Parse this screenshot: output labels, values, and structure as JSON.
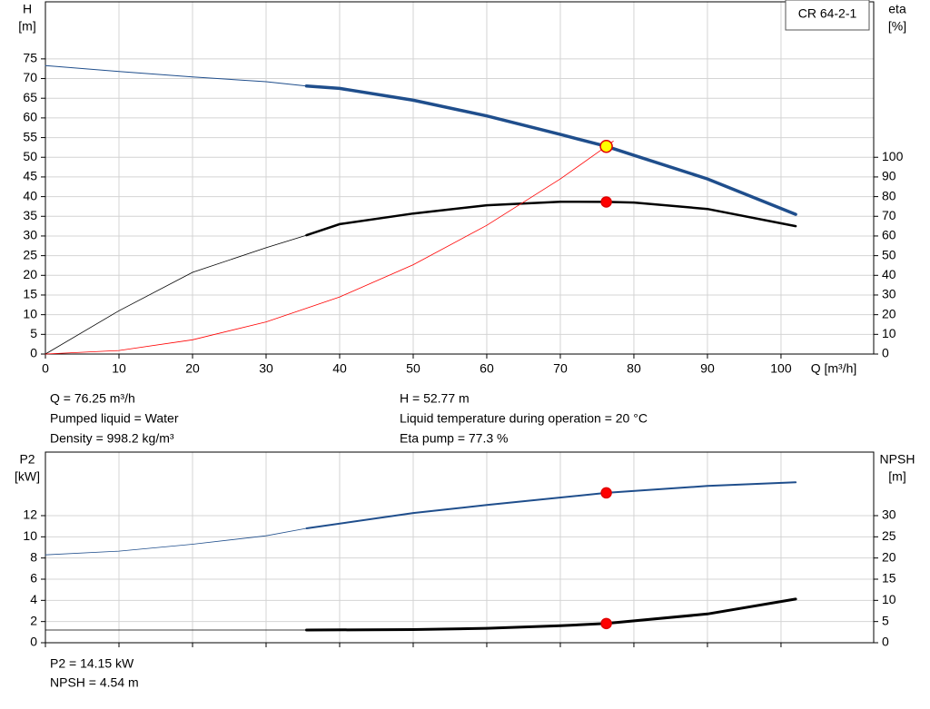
{
  "chart_data": [
    {
      "type": "line",
      "annotation": "CR 64-2-1",
      "ylabel": [
        "H",
        "[m]"
      ],
      "y2label": [
        "eta",
        "[%]"
      ],
      "xlabel": "Q [m³/h]",
      "xlim": [
        0,
        112.6
      ],
      "xticks": [
        0,
        10,
        20,
        30,
        40,
        50,
        60,
        70,
        80,
        90,
        100
      ],
      "ylim": [
        0,
        89.5
      ],
      "yticks": [
        0,
        5,
        10,
        15,
        20,
        25,
        30,
        35,
        40,
        45,
        50,
        55,
        60,
        65,
        70,
        75
      ],
      "y2lim": [
        0,
        179
      ],
      "y2ticks": [
        0,
        10,
        20,
        30,
        40,
        50,
        60,
        70,
        80,
        90,
        100
      ],
      "grid": true,
      "series": [
        {
          "color": "#1f4e8c",
          "width": 1,
          "axis": "y",
          "x": [
            0,
            10,
            20,
            30,
            35.5
          ],
          "values": [
            73.3,
            71.8,
            70.4,
            69.2,
            68.1
          ]
        },
        {
          "color": "#1f4e8c",
          "width": 3.5,
          "axis": "y",
          "x": [
            35.5,
            40,
            50,
            60,
            70,
            76.25,
            80,
            90,
            102
          ],
          "values": [
            68.1,
            67.5,
            64.5,
            60.5,
            55.8,
            52.77,
            50.5,
            44.5,
            35.5
          ]
        },
        {
          "color": "#000000",
          "width": 0.8,
          "axis": "y2",
          "x": [
            0,
            10,
            20,
            30,
            35.5
          ],
          "values": [
            0,
            22,
            41.5,
            54,
            60.4
          ]
        },
        {
          "color": "#000000",
          "width": 2.5,
          "axis": "y2",
          "x": [
            35.5,
            40,
            50,
            60,
            70,
            76.25,
            80,
            90,
            102
          ],
          "values": [
            60.4,
            66,
            71.4,
            75.6,
            77.4,
            77.3,
            77,
            73.7,
            65
          ]
        },
        {
          "color": "#ff0000",
          "width": 0.8,
          "axis": "y",
          "x": [
            0,
            10,
            20,
            30,
            40,
            50,
            60,
            70,
            76.25,
            77.2
          ],
          "values": [
            0,
            0.91,
            3.63,
            8.17,
            14.5,
            22.7,
            32.7,
            44.5,
            52.77,
            54.1
          ]
        }
      ],
      "points": [
        {
          "x": 76.25,
          "value": 52.77,
          "axis": "y",
          "color": "#ffff00"
        },
        {
          "x": 76.25,
          "value": 77.3,
          "axis": "y2",
          "color": "#ff0000"
        }
      ],
      "info": [
        [
          "Q = 76.25 m³/h",
          "Pumped liquid = Water",
          "Density = 998.2 kg/m³"
        ],
        [
          "H = 52.77 m",
          "Liquid temperature during operation = 20 °C",
          "Eta pump = 77.3 %"
        ]
      ]
    },
    {
      "type": "line",
      "ylabel": [
        "P2",
        "[kW]"
      ],
      "y2label": [
        "NPSH",
        "[m]"
      ],
      "xlim": [
        0,
        112.6
      ],
      "xticks": [
        0,
        10,
        20,
        30,
        40,
        50,
        60,
        70,
        80,
        90,
        100
      ],
      "ylim": [
        0,
        18
      ],
      "yticks": [
        0,
        2,
        4,
        6,
        8,
        10,
        12
      ],
      "y2lim": [
        0,
        45
      ],
      "y2ticks": [
        0,
        5,
        10,
        15,
        20,
        25,
        30
      ],
      "grid": true,
      "series": [
        {
          "color": "#1f4e8c",
          "width": 0.8,
          "axis": "y",
          "x": [
            0,
            10,
            20,
            30,
            35.5
          ],
          "values": [
            8.3,
            8.65,
            9.3,
            10.1,
            10.8
          ]
        },
        {
          "color": "#1f4e8c",
          "width": 2,
          "axis": "y",
          "x": [
            35.5,
            50,
            60,
            76.25,
            90,
            102
          ],
          "values": [
            10.8,
            12.25,
            13.0,
            14.15,
            14.8,
            15.15
          ]
        },
        {
          "color": "#000000",
          "width": 0.8,
          "axis": "y2",
          "x": [
            0,
            35.5
          ],
          "values": [
            3.0,
            3.0
          ]
        },
        {
          "color": "#000000",
          "width": 3,
          "axis": "y2",
          "x": [
            35.5,
            50,
            60,
            70,
            76.25,
            90,
            102
          ],
          "values": [
            3.0,
            3.1,
            3.4,
            4.0,
            4.54,
            6.8,
            10.3
          ]
        }
      ],
      "points": [
        {
          "x": 76.25,
          "value": 14.15,
          "axis": "y",
          "color": "#ff0000"
        },
        {
          "x": 76.25,
          "value": 4.54,
          "axis": "y2",
          "color": "#ff0000"
        }
      ],
      "info": [
        [
          "P2 = 14.15 kW",
          "NPSH = 4.54 m"
        ]
      ]
    }
  ]
}
